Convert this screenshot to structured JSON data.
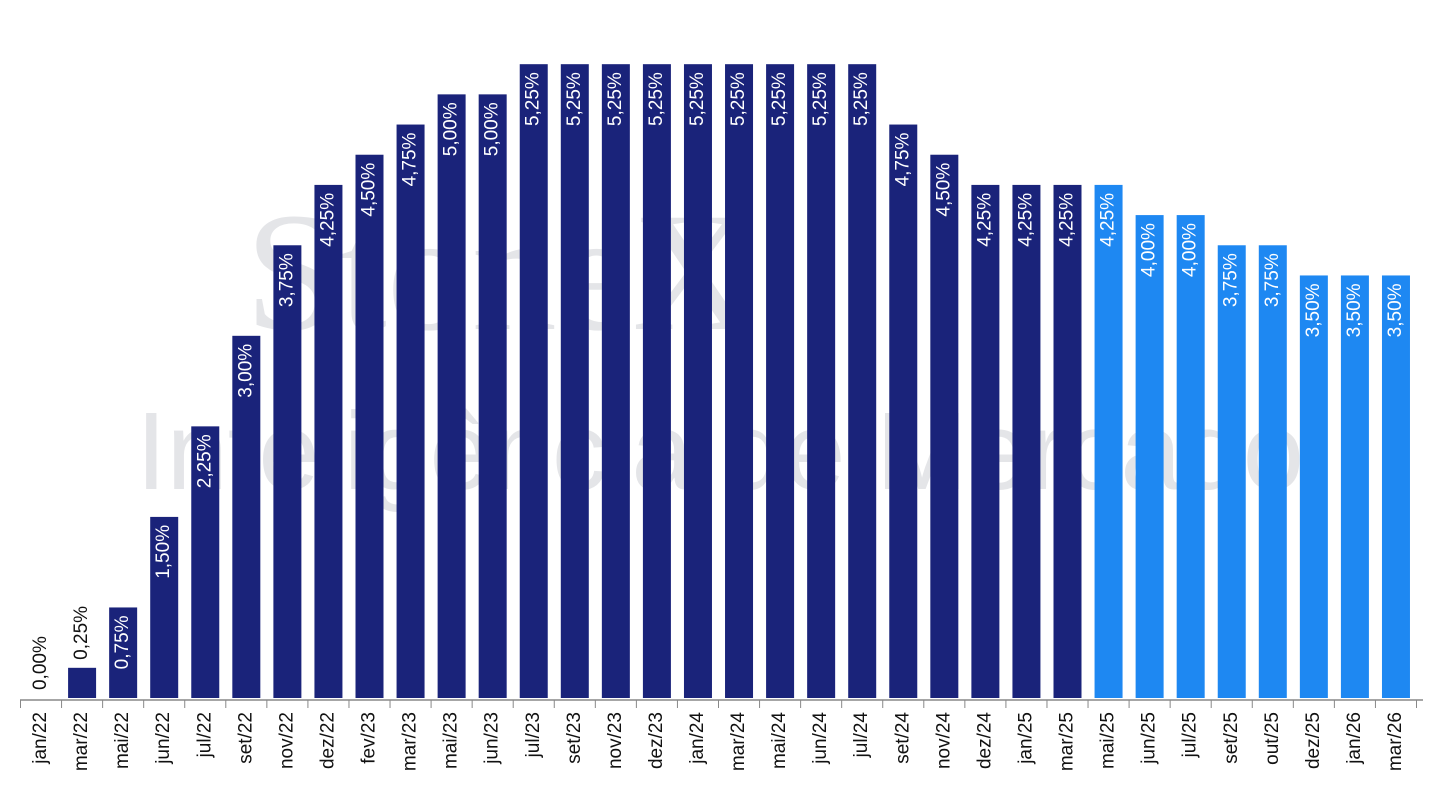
{
  "chart_data": {
    "type": "bar",
    "watermark": [
      "StoneX",
      "Inteligência de Mercado"
    ],
    "categories": [
      "jan/22",
      "mar/22",
      "mai/22",
      "jun/22",
      "jul/22",
      "set/22",
      "nov/22",
      "dez/22",
      "fev/23",
      "mar/23",
      "mai/23",
      "jun/23",
      "jul/23",
      "set/23",
      "nov/23",
      "dez/23",
      "jan/24",
      "mar/24",
      "mai/24",
      "jun/24",
      "jul/24",
      "set/24",
      "nov/24",
      "dez/24",
      "jan/25",
      "mar/25",
      "mai/25",
      "jun/25",
      "jul/25",
      "set/25",
      "out/25",
      "dez/25",
      "jan/26",
      "mar/26"
    ],
    "values": [
      0,
      0.25,
      0.75,
      1.5,
      2.25,
      3,
      3.75,
      4.25,
      4.5,
      4.75,
      5,
      5,
      5.25,
      5.25,
      5.25,
      5.25,
      5.25,
      5.25,
      5.25,
      5.25,
      5.25,
      4.75,
      4.5,
      4.25,
      4.25,
      4.25,
      4.25,
      4,
      4,
      3.75,
      3.75,
      3.5,
      3.5,
      3.5
    ],
    "value_labels": [
      "0,00%",
      "0,25%",
      "0,75%",
      "1,50%",
      "2,25%",
      "3,00%",
      "3,75%",
      "4,25%",
      "4,50%",
      "4,75%",
      "5,00%",
      "5,00%",
      "5,25%",
      "5,25%",
      "5,25%",
      "5,25%",
      "5,25%",
      "5,25%",
      "5,25%",
      "5,25%",
      "5,25%",
      "4,75%",
      "4,50%",
      "4,25%",
      "4,25%",
      "4,25%",
      "4,25%",
      "4,00%",
      "4,00%",
      "3,75%",
      "3,75%",
      "3,50%",
      "3,50%",
      "3,50%"
    ],
    "colors": [
      "#1a237a",
      "#1a237a",
      "#1a237a",
      "#1a237a",
      "#1a237a",
      "#1a237a",
      "#1a237a",
      "#1a237a",
      "#1a237a",
      "#1a237a",
      "#1a237a",
      "#1a237a",
      "#1a237a",
      "#1a237a",
      "#1a237a",
      "#1a237a",
      "#1a237a",
      "#1a237a",
      "#1a237a",
      "#1a237a",
      "#1a237a",
      "#1a237a",
      "#1a237a",
      "#1a237a",
      "#1a237a",
      "#1a237a",
      "#1e88f2",
      "#1e88f2",
      "#1e88f2",
      "#1e88f2",
      "#1e88f2",
      "#1e88f2",
      "#1e88f2",
      "#1e88f2"
    ],
    "ylim": [
      0,
      5.5
    ]
  }
}
